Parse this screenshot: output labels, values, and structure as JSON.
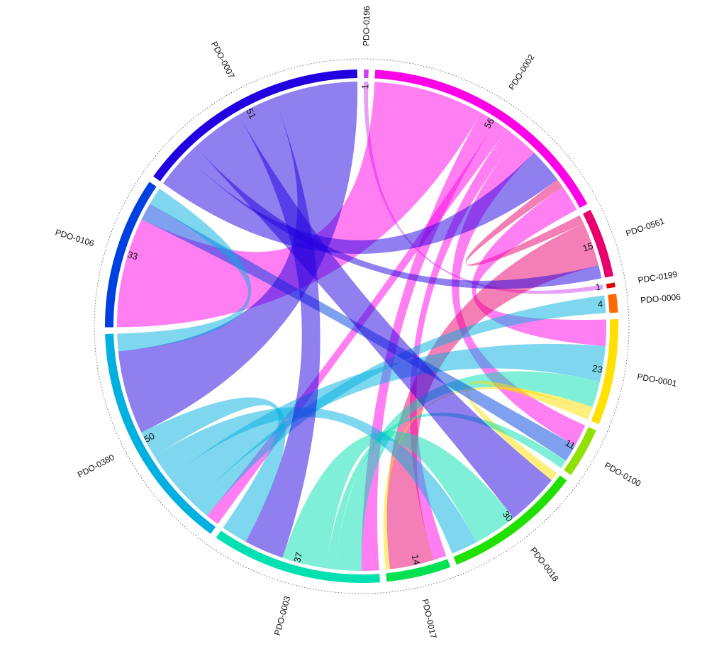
{
  "chart_data": {
    "type": "chord",
    "sectors": [
      {
        "name": "PDO-0196",
        "value": 1,
        "color": "#d040f0"
      },
      {
        "name": "PDO-0002",
        "value": 56,
        "color": "#ff00e6"
      },
      {
        "name": "PDO-0561",
        "value": 15,
        "color": "#e8006e"
      },
      {
        "name": "PDC-0199",
        "value": 1,
        "color": "#e00000"
      },
      {
        "name": "PDO-0006",
        "value": 4,
        "color": "#ff6a00"
      },
      {
        "name": "PDO-0001",
        "value": 23,
        "color": "#ffe000"
      },
      {
        "name": "PDO-0100",
        "value": 11,
        "color": "#90e000"
      },
      {
        "name": "PDO-0018",
        "value": 30,
        "color": "#20e000"
      },
      {
        "name": "PDO-0017",
        "value": 14,
        "color": "#00e050"
      },
      {
        "name": "PDO-0003",
        "value": 37,
        "color": "#00e0b0"
      },
      {
        "name": "PDO-0380",
        "value": 50,
        "color": "#00b0e0"
      },
      {
        "name": "PDO-0106",
        "value": 33,
        "color": "#0040e0"
      },
      {
        "name": "PDO-0007",
        "value": 51,
        "color": "#2000e0"
      }
    ],
    "links": [
      {
        "source": "PDO-0196",
        "target": "PDC-0199",
        "value": 1
      },
      {
        "source": "PDO-0002",
        "target": "PDO-0106",
        "value": 25
      },
      {
        "source": "PDO-0002",
        "target": "PDO-0003",
        "value": 4
      },
      {
        "source": "PDO-0002",
        "target": "PDO-0380",
        "value": 3
      },
      {
        "source": "PDO-0002",
        "target": "PDO-0017",
        "value": 3
      },
      {
        "source": "PDO-0002",
        "target": "PDO-0100",
        "value": 5
      },
      {
        "source": "PDO-0007",
        "target": "PDO-0002",
        "value": 8
      },
      {
        "source": "PDO-0561",
        "target": "PDO-0002",
        "value": 2
      },
      {
        "source": "PDO-0002",
        "target": "PDO-0001",
        "value": 6
      },
      {
        "source": "PDO-0561",
        "target": "PDO-0017",
        "value": 10
      },
      {
        "source": "PDO-0007",
        "target": "PDO-0561",
        "value": 3
      },
      {
        "source": "PDO-0380",
        "target": "PDO-0006",
        "value": 4
      },
      {
        "source": "PDO-0380",
        "target": "PDO-0001",
        "value": 8
      },
      {
        "source": "PDO-0003",
        "target": "PDO-0001",
        "value": 6
      },
      {
        "source": "PDO-0001",
        "target": "PDO-0017",
        "value": 1
      },
      {
        "source": "PDO-0001",
        "target": "PDO-0018",
        "value": 2
      },
      {
        "source": "PDO-0106",
        "target": "PDO-0100",
        "value": 4
      },
      {
        "source": "PDO-0003",
        "target": "PDO-0100",
        "value": 2
      },
      {
        "source": "PDO-0007",
        "target": "PDO-0018",
        "value": 12
      },
      {
        "source": "PDO-0003",
        "target": "PDO-0018",
        "value": 10
      },
      {
        "source": "PDO-0380",
        "target": "PDO-0018",
        "value": 6
      },
      {
        "source": "PDO-0007",
        "target": "PDO-0003",
        "value": 9
      },
      {
        "source": "PDO-0380",
        "target": "PDO-0003",
        "value": 6
      },
      {
        "source": "PDO-0007",
        "target": "PDO-0380",
        "value": 19
      },
      {
        "source": "PDO-0380",
        "target": "PDO-0106",
        "value": 4
      }
    ]
  }
}
